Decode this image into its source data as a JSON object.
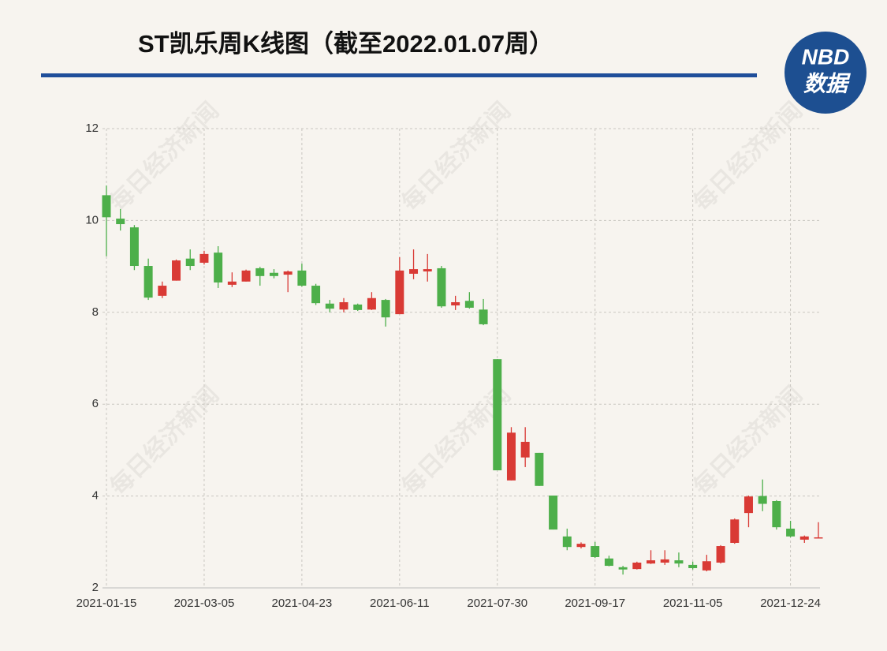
{
  "chart_data": {
    "type": "candlestick",
    "title": "ST凯乐周K线图（截至2022.01.07周）",
    "logo": {
      "top": "NBD",
      "bottom": "数据"
    },
    "watermark": "每日经济新闻",
    "categories": [
      "2021-01-15",
      null,
      null,
      null,
      null,
      null,
      null,
      "2021-03-05",
      null,
      null,
      null,
      null,
      null,
      null,
      "2021-04-23",
      null,
      null,
      null,
      null,
      null,
      null,
      "2021-06-11",
      null,
      null,
      null,
      null,
      null,
      null,
      "2021-07-30",
      null,
      null,
      null,
      null,
      null,
      null,
      "2021-09-17",
      null,
      null,
      null,
      null,
      null,
      null,
      "2021-11-05",
      null,
      null,
      null,
      null,
      null,
      null,
      "2021-12-24",
      null,
      null
    ],
    "open": [
      10.55,
      10.04,
      9.85,
      9.01,
      8.36,
      8.69,
      9.17,
      9.08,
      9.3,
      8.6,
      8.67,
      8.96,
      8.86,
      8.82,
      8.91,
      8.58,
      8.19,
      8.06,
      8.17,
      8.06,
      8.27,
      7.96,
      8.84,
      8.89,
      8.96,
      8.15,
      8.25,
      8.06,
      6.98,
      4.34,
      4.84,
      4.94,
      4.01,
      3.12,
      2.89,
      2.91,
      2.64,
      2.45,
      2.41,
      2.53,
      2.55,
      2.6,
      2.5,
      2.38,
      2.55,
      2.98,
      3.63,
      4.0,
      3.89,
      3.29,
      3.05,
      3.08
    ],
    "high": [
      10.76,
      10.25,
      9.9,
      9.17,
      8.67,
      9.15,
      9.37,
      9.34,
      9.44,
      8.87,
      8.93,
      8.99,
      8.94,
      8.91,
      9.06,
      8.62,
      8.27,
      8.31,
      8.19,
      8.44,
      8.29,
      9.2,
      9.37,
      9.27,
      9.01,
      8.36,
      8.44,
      8.29,
      6.98,
      5.5,
      5.5,
      4.94,
      4.01,
      3.29,
      2.99,
      3.0,
      2.7,
      2.48,
      2.57,
      2.82,
      2.82,
      2.77,
      2.57,
      2.72,
      2.93,
      3.51,
      4.01,
      4.36,
      3.91,
      3.46,
      3.14,
      3.43
    ],
    "low": [
      9.22,
      9.78,
      8.92,
      8.27,
      8.31,
      8.69,
      8.92,
      9.04,
      8.53,
      8.55,
      8.67,
      8.58,
      8.74,
      8.44,
      8.56,
      8.16,
      8.0,
      8.0,
      8.03,
      8.05,
      7.69,
      7.96,
      8.72,
      8.67,
      8.1,
      8.05,
      8.08,
      7.72,
      4.56,
      4.34,
      4.63,
      4.22,
      3.27,
      2.82,
      2.86,
      2.65,
      2.47,
      2.29,
      2.4,
      2.52,
      2.5,
      2.45,
      2.4,
      2.36,
      2.53,
      2.96,
      3.32,
      3.67,
      3.27,
      3.1,
      2.98,
      3.08
    ],
    "close": [
      10.07,
      9.92,
      9.01,
      8.32,
      8.58,
      9.13,
      9.01,
      9.27,
      8.65,
      8.67,
      8.91,
      8.79,
      8.79,
      8.89,
      8.58,
      8.2,
      8.08,
      8.22,
      8.05,
      8.31,
      7.89,
      8.91,
      8.94,
      8.94,
      8.13,
      8.22,
      8.1,
      7.74,
      4.56,
      5.38,
      5.18,
      4.22,
      3.27,
      2.89,
      2.96,
      2.67,
      2.48,
      2.4,
      2.55,
      2.6,
      2.62,
      2.53,
      2.43,
      2.58,
      2.91,
      3.49,
      3.99,
      3.83,
      3.32,
      3.12,
      3.12,
      3.1
    ],
    "up_color": "#d93a35",
    "down_color": "#4daf4a",
    "ylim": [
      2,
      12
    ],
    "yticks": [
      2,
      4,
      6,
      8,
      10,
      12
    ],
    "grid": true
  }
}
